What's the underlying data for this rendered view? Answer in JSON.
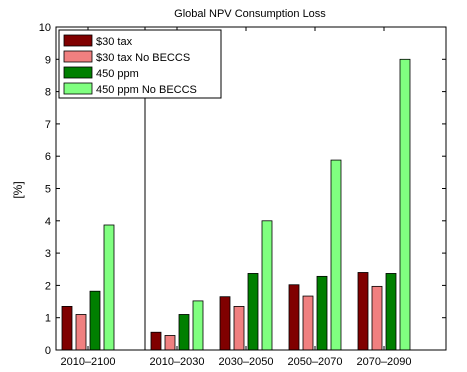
{
  "chart_data": {
    "type": "bar",
    "title": "Global NPV Consumption Loss",
    "ylabel": "[%]",
    "xlabel": "",
    "ylim": [
      0,
      10
    ],
    "yticks": [
      0,
      1,
      2,
      3,
      4,
      5,
      6,
      7,
      8,
      9,
      10
    ],
    "grid": false,
    "legend_position": "top-left",
    "categories": [
      "2010–2100",
      "2010–2030",
      "2030–2050",
      "2050–2070",
      "2070–2090"
    ],
    "series": [
      {
        "name": "$30 tax",
        "color": "#800000",
        "values": [
          1.35,
          0.55,
          1.65,
          2.02,
          2.4
        ]
      },
      {
        "name": "$30 tax No BECCS",
        "color": "#f08080",
        "values": [
          1.1,
          0.45,
          1.35,
          1.67,
          1.97
        ]
      },
      {
        "name": "450 ppm",
        "color": "#007f00",
        "values": [
          1.82,
          1.1,
          2.37,
          2.28,
          2.37
        ]
      },
      {
        "name": "450 ppm No BECCS",
        "color": "#80ff80",
        "values": [
          3.87,
          1.52,
          4.0,
          5.88,
          9.0
        ]
      }
    ],
    "separator_after_category_index": 0
  }
}
